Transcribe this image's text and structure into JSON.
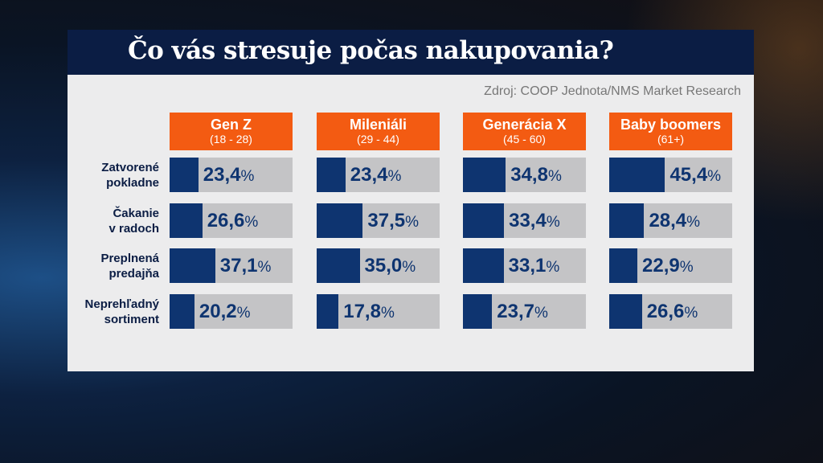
{
  "chart_data": {
    "type": "bar",
    "title": "Čo vás stresuje počas nakupovania?",
    "source": "Zdroj: COOP Jednota/NMS Market Research",
    "unit": "%",
    "xlim": [
      0,
      100
    ],
    "groups": [
      {
        "name": "Gen Z",
        "range": "(18 - 28)"
      },
      {
        "name": "Mileniáli",
        "range": "(29 - 44)"
      },
      {
        "name": "Generácia X",
        "range": "(45 - 60)"
      },
      {
        "name": "Baby boomers",
        "range": "(61+)"
      }
    ],
    "categories": [
      [
        "Zatvorené",
        "pokladne"
      ],
      [
        "Čakanie",
        "v radoch"
      ],
      [
        "Preplnená",
        "predajňa"
      ],
      [
        "Neprehľadný",
        "sortiment"
      ]
    ],
    "values": [
      [
        23.4,
        23.4,
        34.8,
        45.4
      ],
      [
        26.6,
        37.5,
        33.4,
        28.4
      ],
      [
        37.1,
        35.0,
        33.1,
        22.9
      ],
      [
        20.2,
        17.8,
        23.7,
        26.6
      ]
    ],
    "labels": [
      [
        "23,4",
        "23,4",
        "34,8",
        "45,4"
      ],
      [
        "26,6",
        "37,5",
        "33,4",
        "28,4"
      ],
      [
        "37,1",
        "35,0",
        "33,1",
        "22,9"
      ],
      [
        "20,2",
        "17,8",
        "23,7",
        "26,6"
      ]
    ]
  },
  "colors": {
    "header": "#f35b12",
    "bar": "#0e3470",
    "track": "#c4c4c6"
  }
}
